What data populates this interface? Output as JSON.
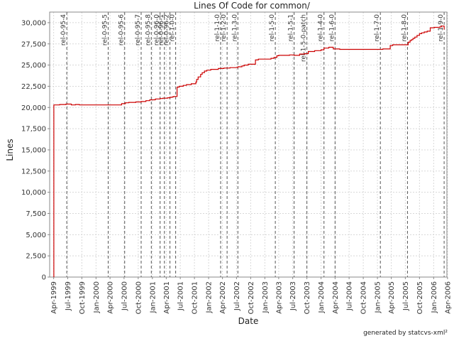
{
  "chart_data": {
    "type": "line",
    "title": "Lines Of Code for common/",
    "xlabel": "Date",
    "ylabel": "Lines",
    "x_range": [
      "1999-03-06",
      "2006-03-28"
    ],
    "ylim": [
      0,
      31250
    ],
    "x_ticks": [
      "1999-04-01",
      "1999-07-01",
      "1999-10-01",
      "2000-01-01",
      "2000-04-01",
      "2000-07-01",
      "2000-10-01",
      "2001-01-01",
      "2001-04-01",
      "2001-07-01",
      "2001-10-01",
      "2002-01-01",
      "2002-04-01",
      "2002-07-01",
      "2002-10-01",
      "2003-01-01",
      "2003-04-01",
      "2003-07-01",
      "2003-10-01",
      "2004-01-01",
      "2004-04-01",
      "2004-07-01",
      "2004-10-01",
      "2005-01-01",
      "2005-04-01",
      "2005-07-01",
      "2005-10-01",
      "2006-01-01",
      "2006-04-01"
    ],
    "x_tick_labels": [
      "Apr-1999",
      "Jul-1999",
      "Oct-1999",
      "Jan-2000",
      "Apr-2000",
      "Jul-2000",
      "Oct-2000",
      "Jan-2001",
      "Apr-2001",
      "Jul-2001",
      "Oct-2001",
      "Jan-2002",
      "Apr-2002",
      "Jul-2002",
      "Oct-2002",
      "Jan-2003",
      "Apr-2003",
      "Jul-2003",
      "Oct-2003",
      "Jan-2004",
      "Apr-2004",
      "Jul-2004",
      "Oct-2004",
      "Jan-2005",
      "Apr-2005",
      "Jul-2005",
      "Oct-2005",
      "Jan-2006",
      "Apr-2006"
    ],
    "y_ticks": [
      0,
      2500,
      5000,
      7500,
      10000,
      12500,
      15000,
      17500,
      20000,
      22500,
      25000,
      27500,
      30000
    ],
    "y_tick_labels": [
      "0",
      "2,500",
      "5,000",
      "7,500",
      "10,000",
      "12,500",
      "15,000",
      "17,500",
      "20,000",
      "22,500",
      "25,000",
      "27,500",
      "30,000"
    ],
    "grid": true,
    "line_color": "#cc0000",
    "series": [
      {
        "type": "step",
        "x": [
          "1999-04-01",
          "1999-04-02",
          "1999-05-10",
          "1999-06-20",
          "1999-07-25",
          "1999-08-20",
          "1999-09-15",
          "2000-05-10",
          "2000-06-15",
          "2000-07-10",
          "2000-08-01",
          "2000-09-15",
          "2000-10-20",
          "2000-11-20",
          "2000-12-15",
          "2001-01-20",
          "2001-02-20",
          "2001-03-10",
          "2001-04-10",
          "2001-04-25",
          "2001-05-10",
          "2001-05-20",
          "2001-06-10",
          "2001-06-25",
          "2001-07-20",
          "2001-08-10",
          "2001-09-10",
          "2001-10-10",
          "2001-10-15",
          "2001-10-25",
          "2001-11-10",
          "2001-11-20",
          "2001-12-05",
          "2001-12-20",
          "2002-01-15",
          "2002-03-05",
          "2002-04-10",
          "2002-05-20",
          "2002-06-10",
          "2002-07-10",
          "2002-08-05",
          "2002-08-20",
          "2002-09-15",
          "2002-11-01",
          "2002-11-20",
          "2003-01-10",
          "2003-02-10",
          "2003-03-01",
          "2003-03-20",
          "2003-04-01",
          "2003-06-10",
          "2003-07-10",
          "2003-08-15",
          "2003-09-15",
          "2003-10-10",
          "2003-11-20",
          "2004-01-01",
          "2004-01-20",
          "2004-02-20",
          "2004-03-20",
          "2004-05-01",
          "2005-02-05",
          "2005-03-25",
          "2005-04-10",
          "2005-06-15",
          "2005-07-20",
          "2005-08-01",
          "2005-08-10",
          "2005-08-20",
          "2005-09-01",
          "2005-09-15",
          "2005-10-01",
          "2005-10-15",
          "2005-11-01",
          "2005-11-20",
          "2005-12-10",
          "2006-01-05",
          "2006-02-10",
          "2006-02-20",
          "2006-03-10"
        ],
        "y": [
          0,
          20300,
          20350,
          20400,
          20300,
          20350,
          20300,
          20300,
          20450,
          20550,
          20600,
          20650,
          20700,
          20800,
          20900,
          21000,
          21050,
          21100,
          21150,
          21200,
          21250,
          21300,
          22400,
          22500,
          22600,
          22700,
          22800,
          23000,
          23300,
          23600,
          23900,
          24100,
          24300,
          24400,
          24500,
          24600,
          24650,
          24700,
          24700,
          24800,
          24900,
          25000,
          25100,
          25600,
          25700,
          25700,
          25800,
          25900,
          26100,
          26150,
          26200,
          26150,
          26300,
          26350,
          26600,
          26700,
          26800,
          27000,
          27100,
          26900,
          26850,
          26900,
          27300,
          27400,
          27400,
          27700,
          27900,
          28000,
          28150,
          28300,
          28500,
          28700,
          28800,
          28900,
          29000,
          29400,
          29450,
          29500,
          29600,
          29200
        ]
      }
    ],
    "markers": [
      {
        "date": "1999-06-25",
        "label": "rel-0-95-4"
      },
      {
        "date": "2000-03-20",
        "label": "rel-0-95-5"
      },
      {
        "date": "2000-07-05",
        "label": "rel-0-95-6"
      },
      {
        "date": "2000-10-20",
        "label": "rel-0-95-7"
      },
      {
        "date": "2000-12-25",
        "label": "rel-0-95-8"
      },
      {
        "date": "2001-02-20",
        "label": "rel-0-96-0"
      },
      {
        "date": "2001-03-20",
        "label": "rel-0-96-1"
      },
      {
        "date": "2001-04-25",
        "label": "rel-0-96-2"
      },
      {
        "date": "2001-06-01",
        "label": "rel-1-0-0"
      },
      {
        "date": "2002-03-20",
        "label": "rel-1-1-0"
      },
      {
        "date": "2002-05-01",
        "label": "rel-1-2-0"
      },
      {
        "date": "2002-07-10",
        "label": "rel-1-3-0"
      },
      {
        "date": "2003-03-10",
        "label": "rel-1-5-0"
      },
      {
        "date": "2003-07-10",
        "label": "rel-1-5-1"
      },
      {
        "date": "2003-10-01",
        "label": "rel-1-5-0-patch"
      },
      {
        "date": "2004-01-20",
        "label": "rel-1-4-0"
      },
      {
        "date": "2004-04-01",
        "label": "rel-1-6-0"
      },
      {
        "date": "2005-01-20",
        "label": "rel-1-7-0"
      },
      {
        "date": "2005-07-15",
        "label": "rel-1-8-0"
      },
      {
        "date": "2006-03-10",
        "label": "rel-1-9-0"
      }
    ]
  },
  "footer": {
    "credit": "generated by statcvs-xml²"
  }
}
